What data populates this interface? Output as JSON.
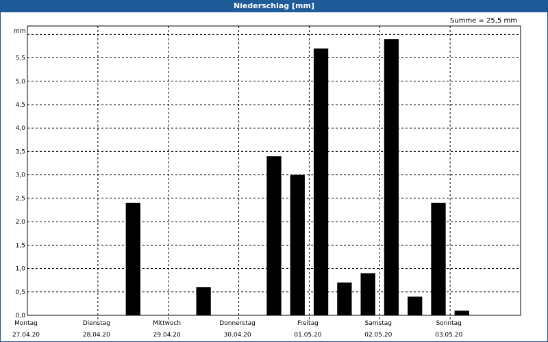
{
  "window": {
    "title": "Niederschlag [mm]"
  },
  "summary": {
    "text": "Summe = 25,5 mm"
  },
  "colors": {
    "titlebar": "#1f5a99",
    "bar": "#000000",
    "grid": "#000000"
  },
  "chart_data": {
    "type": "bar",
    "title": "Niederschlag [mm]",
    "ylabel": "mm",
    "xlabel": "",
    "ylim": [
      0,
      6.0
    ],
    "yticks": [
      "0,0",
      "0,5",
      "1,0",
      "1,5",
      "2,0",
      "2,5",
      "3,0",
      "3,5",
      "4,0",
      "4,5",
      "5,0",
      "5,5"
    ],
    "ytick_values": [
      0,
      0.5,
      1.0,
      1.5,
      2.0,
      2.5,
      3.0,
      3.5,
      4.0,
      4.5,
      5.0,
      5.5
    ],
    "days": [
      {
        "weekday": "Montag",
        "date": "27.04.20"
      },
      {
        "weekday": "Dienstag",
        "date": "28.04.20"
      },
      {
        "weekday": "Mittwoch",
        "date": "29.04.20"
      },
      {
        "weekday": "Donnerstag",
        "date": "30.04.20"
      },
      {
        "weekday": "Freitag",
        "date": "01.05.20"
      },
      {
        "weekday": "Samstag",
        "date": "02.05.20"
      },
      {
        "weekday": "Sonntag",
        "date": "03.05.20"
      }
    ],
    "interval_hours": 8,
    "values": [
      0,
      0,
      0,
      0,
      2.4,
      0,
      0,
      0.6,
      0,
      0,
      3.4,
      3.0,
      5.7,
      0.7,
      0.9,
      5.9,
      0.4,
      2.4,
      0.1,
      0,
      0
    ],
    "grid": true
  }
}
